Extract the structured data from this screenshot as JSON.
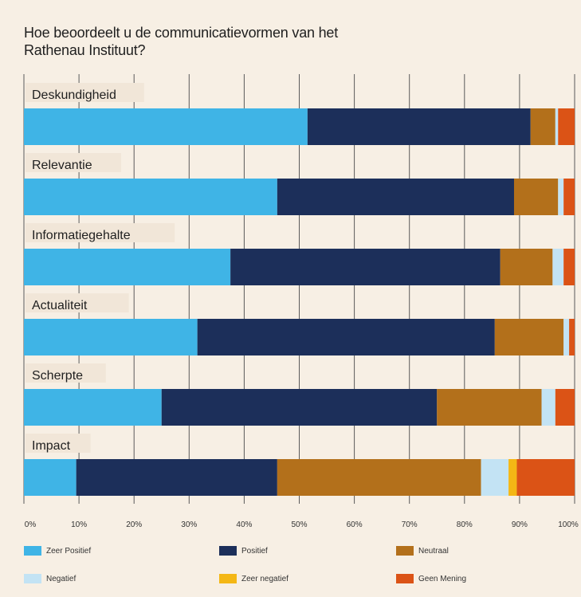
{
  "title": "Hoe beoordeelt u de communicatievormen van het\nRathenau Instituut?",
  "colors": {
    "background": "#f7efe4",
    "grid": "#5a5a5a",
    "label_box": "#f1e6d8"
  },
  "chart_data": {
    "type": "bar",
    "orientation": "horizontal",
    "stacked": true,
    "title": "Hoe beoordeelt u de communicatievormen van het\nRathenau Instituut?",
    "xlim": [
      0,
      100
    ],
    "x_ticks": [
      "0%",
      "10%",
      "20%",
      "30%",
      "40%",
      "50%",
      "60%",
      "70%",
      "80%",
      "90%",
      "100%"
    ],
    "grid": "vertical",
    "legend_position": "bottom",
    "categories": [
      "Deskundigheid",
      "Relevantie",
      "Informatiegehalte",
      "Actualiteit",
      "Scherpte",
      "Impact"
    ],
    "series": [
      {
        "name": "Zeer Positief",
        "color": "#3fb4e6",
        "values": [
          51.5,
          46.0,
          37.5,
          31.5,
          25.0,
          9.5
        ]
      },
      {
        "name": "Positief",
        "color": "#1c2f5a",
        "values": [
          40.5,
          43.0,
          49.0,
          54.0,
          50.0,
          36.5
        ]
      },
      {
        "name": "Neutraal",
        "color": "#b3701b",
        "values": [
          4.5,
          8.0,
          9.5,
          12.5,
          19.0,
          37.0
        ]
      },
      {
        "name": "Negatief",
        "color": "#c3e3f4",
        "values": [
          0.5,
          1.0,
          2.0,
          1.0,
          2.5,
          5.0
        ]
      },
      {
        "name": "Zeer negatief",
        "color": "#f4b715",
        "values": [
          0.0,
          0.0,
          0.0,
          0.0,
          0.0,
          1.5
        ]
      },
      {
        "name": "Geen Mening",
        "color": "#db5316",
        "values": [
          3.0,
          2.0,
          2.0,
          1.0,
          3.5,
          10.5
        ]
      }
    ]
  }
}
